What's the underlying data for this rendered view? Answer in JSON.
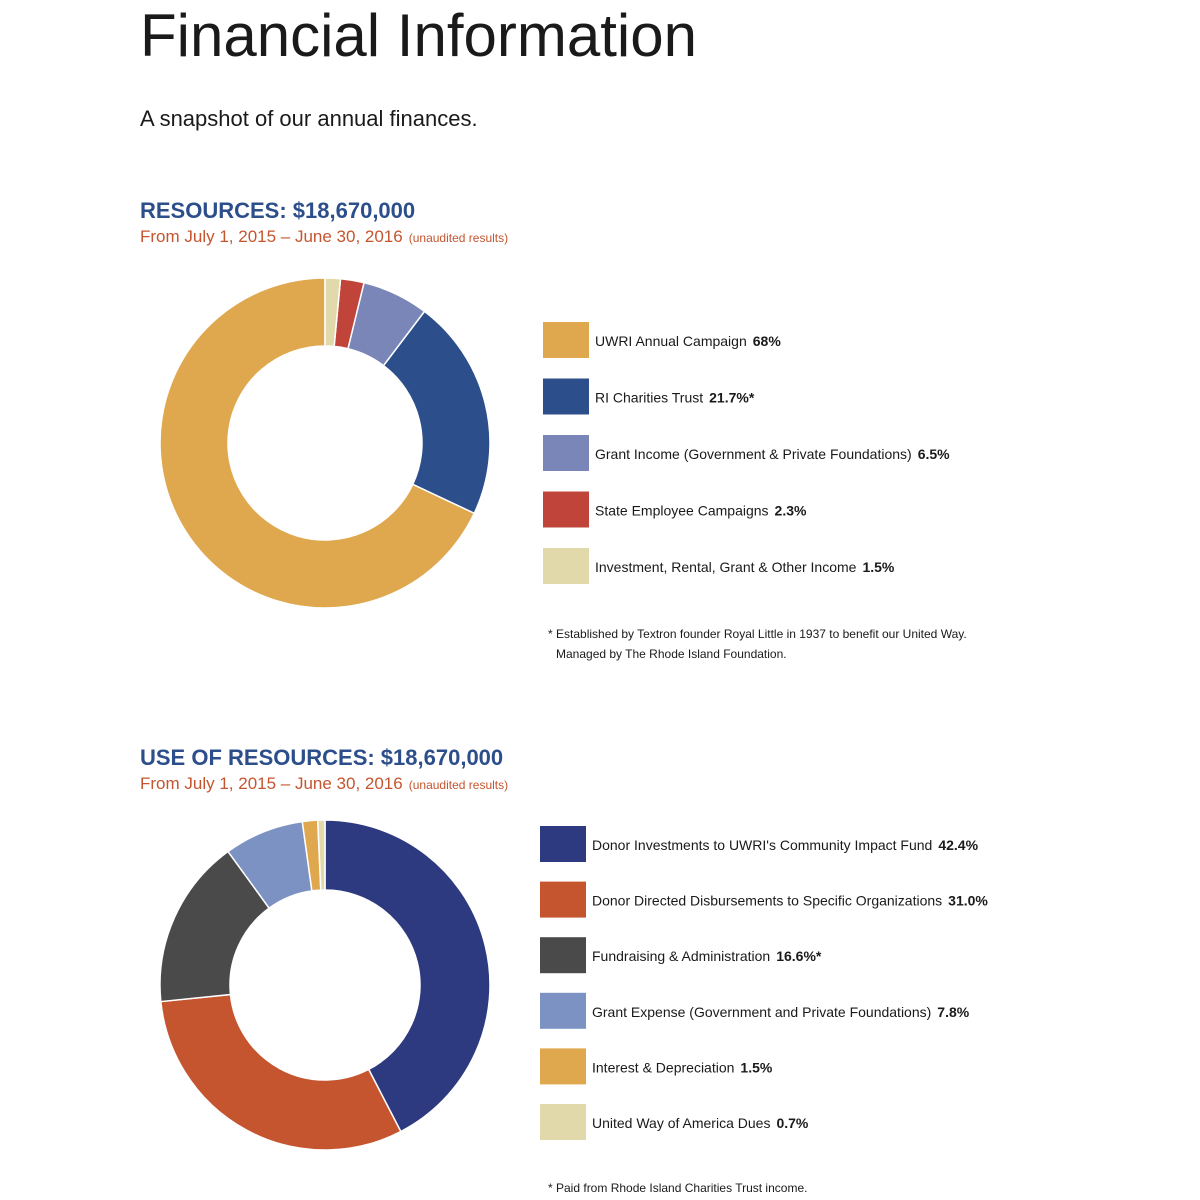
{
  "title": "Financial Information",
  "subtitle": "A snapshot of our annual finances.",
  "chart_data": [
    {
      "type": "donut",
      "title": "RESOURCES: $18,670,000",
      "subtitle": "From July 1, 2015 – June 30, 2016",
      "note": "(unaudited results)",
      "categories": [
        "UWRI Annual Campaign",
        "RI Charities Trust",
        "Grant Income (Government & Private Foundations)",
        "State Employee Campaigns",
        "Investment, Rental, Grant & Other Income"
      ],
      "values": [
        68,
        21.7,
        6.5,
        2.3,
        1.5
      ],
      "value_labels": [
        "68%",
        "21.7%*",
        "6.5%",
        "2.3%",
        "1.5%"
      ],
      "colors": [
        "#e0a84e",
        "#2c4e8a",
        "#7a86b8",
        "#c0443a",
        "#e2d9ab"
      ],
      "clockwise": false,
      "footnote": [
        "* Established by Textron founder Royal Little in 1937 to benefit our United Way.",
        "Managed by The Rhode Island Foundation."
      ]
    },
    {
      "type": "donut",
      "title": "USE OF RESOURCES: $18,670,000",
      "subtitle": "From July 1, 2015 – June 30, 2016",
      "note": "(unaudited results)",
      "categories": [
        "Donor Investments to UWRI's Community Impact Fund",
        "Donor Directed Disbursements to Specific Organizations",
        "Fundraising & Administration",
        "Grant Expense (Government and Private Foundations)",
        "Interest & Depreciation",
        "United Way of America Dues"
      ],
      "values": [
        42.4,
        31.0,
        16.6,
        7.8,
        1.5,
        0.7
      ],
      "value_labels": [
        "42.4%",
        "31.0%",
        "16.6%*",
        "7.8%",
        "1.5%",
        "0.7%"
      ],
      "colors": [
        "#2e3a80",
        "#c5552f",
        "#4a4a4a",
        "#7b92c3",
        "#e0a84e",
        "#e2d9ab"
      ],
      "clockwise": true,
      "footnote": [
        "* Paid from Rhode Island Charities Trust income."
      ]
    }
  ]
}
